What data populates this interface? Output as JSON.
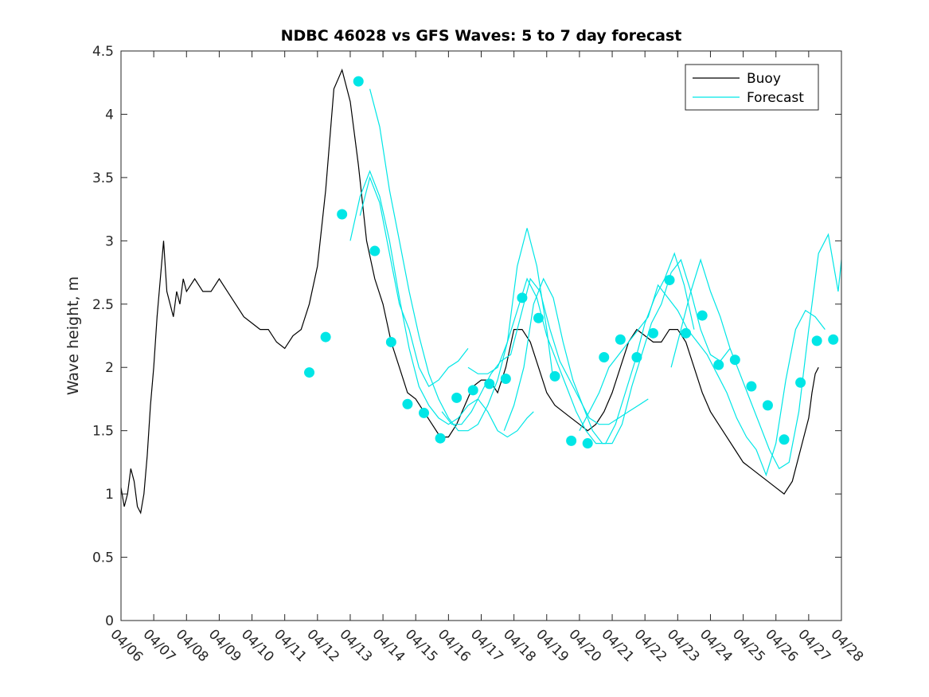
{
  "chart_data": {
    "type": "line",
    "title": "NDBC 46028 vs GFS Waves: 5 to 7 day forecast",
    "xlabel": "",
    "ylabel": "Wave height, m",
    "xlim": [
      "04/06",
      "04/28"
    ],
    "ylim": [
      0,
      4.5
    ],
    "x_ticks": [
      "04/06",
      "04/07",
      "04/08",
      "04/09",
      "04/10",
      "04/11",
      "04/12",
      "04/13",
      "04/14",
      "04/15",
      "04/16",
      "04/17",
      "04/18",
      "04/19",
      "04/20",
      "04/21",
      "04/22",
      "04/23",
      "04/24",
      "04/25",
      "04/26",
      "04/27",
      "04/28"
    ],
    "y_ticks": [
      "0",
      "0.5",
      "1",
      "1.5",
      "2",
      "2.5",
      "3",
      "3.5",
      "4",
      "4.5"
    ],
    "legend": {
      "position": "top-right",
      "entries": [
        "Buoy",
        "Forecast"
      ]
    },
    "colors": {
      "buoy": "#000000",
      "forecast": "#00e6e6",
      "axes": "#262626"
    },
    "series": [
      {
        "name": "Buoy",
        "x_day": [
          0.0,
          0.1,
          0.2,
          0.3,
          0.4,
          0.5,
          0.6,
          0.7,
          0.8,
          0.9,
          1.0,
          1.1,
          1.2,
          1.3,
          1.4,
          1.5,
          1.6,
          1.7,
          1.8,
          1.9,
          2.0,
          2.25,
          2.5,
          2.75,
          3.0,
          3.25,
          3.5,
          3.75,
          4.0,
          4.25,
          4.5,
          4.75,
          5.0,
          5.25,
          5.5,
          5.75,
          6.0,
          6.25,
          6.5,
          6.75,
          7.0,
          7.25,
          7.5,
          7.75,
          8.0,
          8.25,
          8.5,
          8.75,
          9.0,
          9.25,
          9.5,
          9.75,
          10.0,
          10.25,
          10.5,
          10.75,
          11.0,
          11.25,
          11.5,
          11.75,
          12.0,
          12.25,
          12.5,
          12.75,
          13.0,
          13.25,
          13.5,
          13.75,
          14.0,
          14.25,
          14.5,
          14.75,
          15.0,
          15.25,
          15.5,
          15.75,
          16.0,
          16.25,
          16.5,
          16.75,
          17.0,
          17.25,
          17.5,
          17.75,
          18.0,
          18.25,
          18.5,
          18.75,
          19.0,
          19.25,
          19.5,
          19.75,
          20.0,
          20.25,
          20.5,
          20.75,
          21.0,
          21.1,
          21.2,
          21.3
        ],
        "y": [
          1.05,
          0.9,
          1.0,
          1.2,
          1.1,
          0.9,
          0.85,
          1.0,
          1.3,
          1.7,
          2.0,
          2.4,
          2.7,
          3.0,
          2.6,
          2.5,
          2.4,
          2.6,
          2.5,
          2.7,
          2.6,
          2.7,
          2.6,
          2.6,
          2.7,
          2.6,
          2.5,
          2.4,
          2.35,
          2.3,
          2.3,
          2.2,
          2.15,
          2.25,
          2.3,
          2.5,
          2.8,
          3.4,
          4.2,
          4.35,
          4.1,
          3.6,
          3.0,
          2.7,
          2.5,
          2.2,
          2.0,
          1.8,
          1.75,
          1.65,
          1.55,
          1.45,
          1.45,
          1.55,
          1.7,
          1.85,
          1.9,
          1.9,
          1.8,
          2.0,
          2.3,
          2.3,
          2.2,
          2.0,
          1.8,
          1.7,
          1.65,
          1.6,
          1.55,
          1.5,
          1.55,
          1.65,
          1.8,
          2.0,
          2.2,
          2.3,
          2.25,
          2.2,
          2.2,
          2.3,
          2.3,
          2.2,
          2.0,
          1.8,
          1.65,
          1.55,
          1.45,
          1.35,
          1.25,
          1.2,
          1.15,
          1.1,
          1.05,
          1.0,
          1.1,
          1.35,
          1.6,
          1.8,
          1.95,
          2.0
        ]
      },
      {
        "name": "Forecast",
        "runs": [
          {
            "x_day": [
              7.3,
              7.6,
              7.9,
              8.2,
              8.5,
              8.8,
              9.1,
              9.4,
              9.7,
              10.0,
              10.3,
              10.6
            ],
            "y": [
              3.2,
              3.5,
              3.3,
              2.9,
              2.5,
              2.3,
              2.0,
              1.85,
              1.9,
              2.0,
              2.05,
              2.15
            ]
          },
          {
            "x_day": [
              7.0,
              7.3,
              7.6,
              7.9,
              8.2,
              8.5,
              8.8,
              9.1,
              9.4,
              9.7,
              10.0,
              10.3,
              10.6,
              10.9,
              11.2,
              11.5,
              11.8,
              12.1,
              12.4,
              12.6
            ],
            "y": [
              3.0,
              3.35,
              3.55,
              3.35,
              3.0,
              2.55,
              2.15,
              1.85,
              1.7,
              1.6,
              1.55,
              1.6,
              1.7,
              1.75,
              1.65,
              1.5,
              1.45,
              1.5,
              1.6,
              1.65
            ]
          },
          {
            "x_day": [
              7.6,
              7.9,
              8.2,
              8.5,
              8.8,
              9.1,
              9.4,
              9.7,
              10.0,
              10.3,
              10.6,
              10.9,
              11.2,
              11.5,
              11.8,
              12.1,
              12.4,
              12.7,
              13.0,
              13.2
            ],
            "y": [
              4.2,
              3.9,
              3.4,
              3.0,
              2.6,
              2.25,
              1.95,
              1.75,
              1.6,
              1.5,
              1.5,
              1.55,
              1.7,
              1.9,
              2.2,
              2.8,
              3.1,
              2.8,
              2.3,
              1.9
            ]
          },
          {
            "x_day": [
              9.8,
              10.1,
              10.4,
              10.7,
              11.0,
              11.3,
              11.6,
              11.9,
              12.2,
              12.5,
              12.8,
              13.1,
              13.4,
              13.7,
              14.0,
              14.3,
              14.6,
              14.9,
              15.2,
              15.5,
              15.8,
              16.1
            ],
            "y": [
              1.65,
              1.55,
              1.55,
              1.65,
              1.8,
              1.95,
              2.05,
              2.1,
              2.4,
              2.7,
              2.6,
              2.3,
              2.05,
              1.9,
              1.75,
              1.6,
              1.55,
              1.55,
              1.6,
              1.65,
              1.7,
              1.75
            ]
          },
          {
            "x_day": [
              10.6,
              10.9,
              11.2,
              11.5,
              11.8,
              12.1,
              12.4,
              12.7,
              13.0,
              13.3,
              13.6,
              13.9,
              14.2,
              14.5,
              14.8,
              15.1,
              15.4,
              15.7,
              16.0,
              16.3,
              16.6,
              16.9,
              17.2,
              17.5
            ],
            "y": [
              2.0,
              1.95,
              1.95,
              2.0,
              2.2,
              2.45,
              2.7,
              2.55,
              2.25,
              2.05,
              1.85,
              1.65,
              1.5,
              1.4,
              1.4,
              1.55,
              1.8,
              2.05,
              2.35,
              2.55,
              2.7,
              2.9,
              2.65,
              2.3
            ]
          },
          {
            "x_day": [
              11.7,
              12.0,
              12.3,
              12.6,
              12.9,
              13.2,
              13.5,
              13.8,
              14.1,
              14.4,
              14.7,
              15.0,
              15.3,
              15.6,
              15.9,
              16.2,
              16.5,
              16.8,
              17.1,
              17.4,
              17.7,
              18.0,
              18.3,
              18.6
            ],
            "y": [
              1.5,
              1.7,
              2.0,
              2.5,
              2.7,
              2.55,
              2.2,
              1.9,
              1.7,
              1.5,
              1.4,
              1.4,
              1.55,
              1.85,
              2.1,
              2.35,
              2.5,
              2.75,
              2.85,
              2.6,
              2.3,
              2.1,
              2.05,
              2.15
            ]
          },
          {
            "x_day": [
              14.0,
              14.3,
              14.6,
              14.9,
              15.2,
              15.5,
              15.8,
              16.1,
              16.4,
              16.7,
              17.0,
              17.3,
              17.6,
              17.9,
              18.2,
              18.5,
              18.8,
              19.1,
              19.4,
              19.7,
              20.0,
              20.3,
              20.6,
              20.9,
              21.2,
              21.5
            ],
            "y": [
              1.5,
              1.65,
              1.8,
              2.0,
              2.1,
              2.2,
              2.3,
              2.4,
              2.65,
              2.55,
              2.45,
              2.3,
              2.2,
              2.1,
              1.95,
              1.8,
              1.6,
              1.45,
              1.35,
              1.15,
              1.4,
              1.9,
              2.3,
              2.45,
              2.4,
              2.3
            ]
          },
          {
            "x_day": [
              16.8,
              17.1,
              17.4,
              17.7,
              18.0,
              18.3,
              18.6,
              18.9,
              19.2,
              19.5,
              19.8,
              20.1,
              20.4,
              20.7,
              21.0,
              21.3,
              21.6,
              21.9,
              22.0
            ],
            "y": [
              2.0,
              2.3,
              2.6,
              2.85,
              2.6,
              2.4,
              2.15,
              1.95,
              1.75,
              1.55,
              1.35,
              1.2,
              1.25,
              1.65,
              2.3,
              2.9,
              3.05,
              2.6,
              2.85
            ]
          }
        ],
        "markers_x_day": [
          5.75,
          6.25,
          6.75,
          7.25,
          7.75,
          8.25,
          8.75,
          9.25,
          9.75,
          10.25,
          10.75,
          11.25,
          11.75,
          12.25,
          12.75,
          13.25,
          13.75,
          14.25,
          14.75,
          15.25,
          15.75,
          16.25,
          16.75,
          17.25,
          17.75,
          18.25,
          18.75,
          19.25,
          19.75,
          20.25,
          20.75,
          21.25,
          21.75
        ],
        "markers_y": [
          1.96,
          2.24,
          3.21,
          4.26,
          2.92,
          2.2,
          1.71,
          1.64,
          1.44,
          1.76,
          1.82,
          1.87,
          1.91,
          2.55,
          2.39,
          1.93,
          1.42,
          1.4,
          2.08,
          2.22,
          2.08,
          2.27,
          2.69,
          2.27,
          2.41,
          2.02,
          2.06,
          1.85,
          1.7,
          1.43,
          1.88,
          2.21,
          2.22
        ]
      }
    ]
  }
}
